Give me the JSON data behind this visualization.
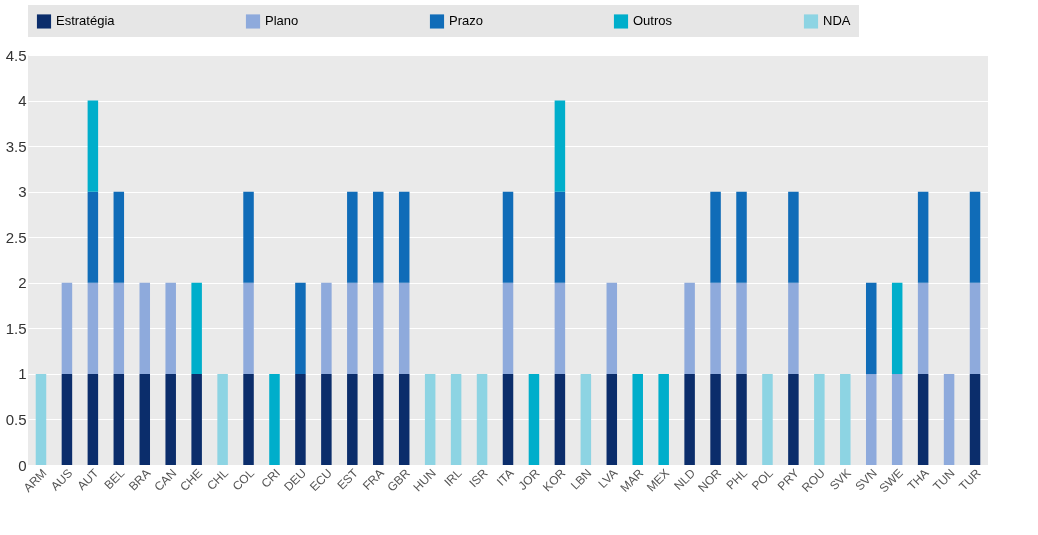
{
  "chart_data": {
    "type": "bar",
    "stacked": true,
    "legend": "top",
    "grid": "y",
    "categories": [
      "ARM",
      "AUS",
      "AUT",
      "BEL",
      "BRA",
      "CAN",
      "CHE",
      "CHL",
      "COL",
      "CRI",
      "DEU",
      "ECU",
      "EST",
      "FRA",
      "GBR",
      "HUN",
      "IRL",
      "ISR",
      "ITA",
      "JOR",
      "KOR",
      "LBN",
      "LVA",
      "MAR",
      "MEX",
      "NLD",
      "NOR",
      "PHL",
      "POL",
      "PRY",
      "ROU",
      "SVK",
      "SVN",
      "SWE",
      "THA",
      "TUN",
      "TUR"
    ],
    "ylim": [
      0,
      4.5
    ],
    "yticks": [
      0,
      0.5,
      1,
      1.5,
      2,
      2.5,
      3,
      3.5,
      4,
      4.5
    ],
    "series": [
      {
        "name": "Estratégia",
        "color": "#0b2d6b",
        "values": [
          0,
          1,
          1,
          1,
          1,
          1,
          1,
          0,
          1,
          0,
          1,
          1,
          1,
          1,
          1,
          0,
          0,
          0,
          1,
          0,
          1,
          0,
          1,
          0,
          0,
          1,
          1,
          1,
          0,
          1,
          0,
          0,
          0,
          0,
          1,
          0,
          1
        ]
      },
      {
        "name": "Plano",
        "color": "#8eaadc",
        "values": [
          0,
          1,
          1,
          1,
          1,
          1,
          0,
          0,
          1,
          0,
          0,
          1,
          1,
          1,
          1,
          0,
          0,
          0,
          1,
          0,
          1,
          0,
          1,
          0,
          0,
          1,
          1,
          1,
          0,
          1,
          0,
          0,
          1,
          1,
          1,
          1,
          1
        ]
      },
      {
        "name": "Prazo",
        "color": "#106cb8",
        "values": [
          0,
          0,
          1,
          1,
          0,
          0,
          0,
          0,
          1,
          0,
          1,
          0,
          1,
          1,
          1,
          0,
          0,
          0,
          1,
          0,
          1,
          0,
          0,
          0,
          0,
          0,
          1,
          1,
          0,
          1,
          0,
          0,
          1,
          0,
          1,
          0,
          1
        ]
      },
      {
        "name": "Outros",
        "color": "#00aecb",
        "values": [
          0,
          0,
          1,
          0,
          0,
          0,
          1,
          0,
          0,
          1,
          0,
          0,
          0,
          0,
          0,
          0,
          0,
          0,
          0,
          1,
          1,
          0,
          0,
          1,
          1,
          0,
          0,
          0,
          0,
          0,
          0,
          0,
          0,
          1,
          0,
          0,
          0
        ]
      },
      {
        "name": "NDA",
        "color": "#8dd4e3",
        "values": [
          1,
          0,
          0,
          0,
          0,
          0,
          0,
          1,
          0,
          0,
          0,
          0,
          0,
          0,
          0,
          1,
          1,
          1,
          0,
          0,
          0,
          1,
          0,
          0,
          0,
          0,
          0,
          0,
          1,
          0,
          1,
          1,
          0,
          0,
          0,
          0,
          0
        ]
      }
    ]
  }
}
